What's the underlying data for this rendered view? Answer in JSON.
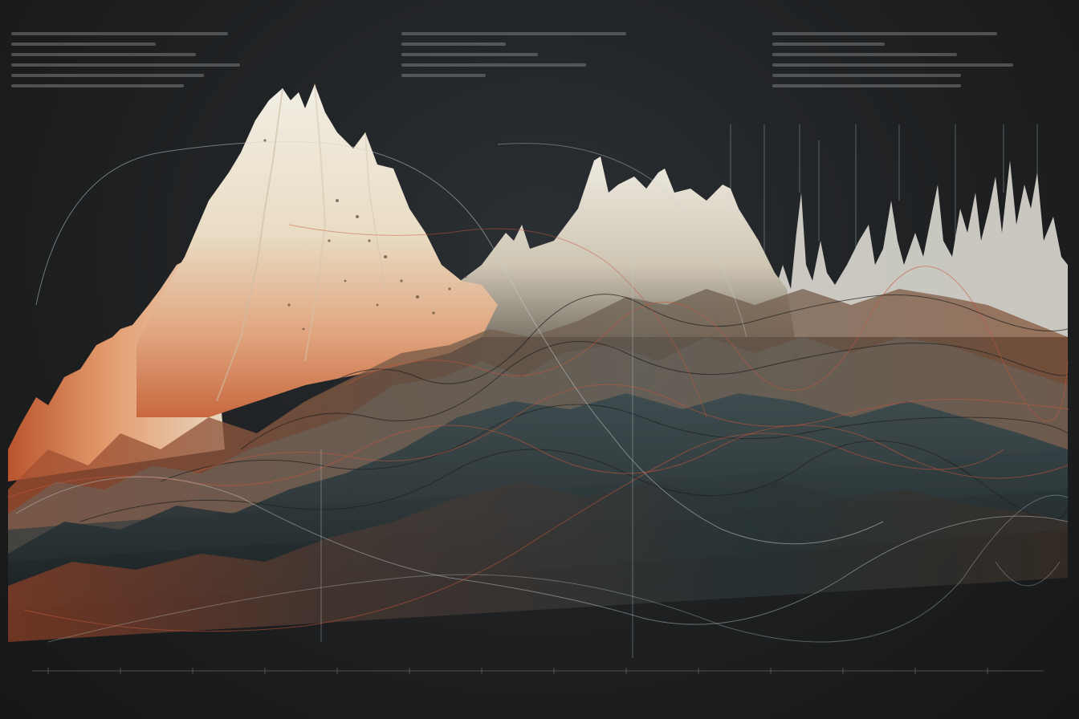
{
  "colors": {
    "background": "#1c1d1e",
    "peak": "#efe9dc",
    "warm": "#d7784a",
    "rust": "#b8502e",
    "teal": "#2e4346",
    "slate": "#3d4a50",
    "line_light": "#c9d3d3",
    "line_red": "#c8553a"
  }
}
